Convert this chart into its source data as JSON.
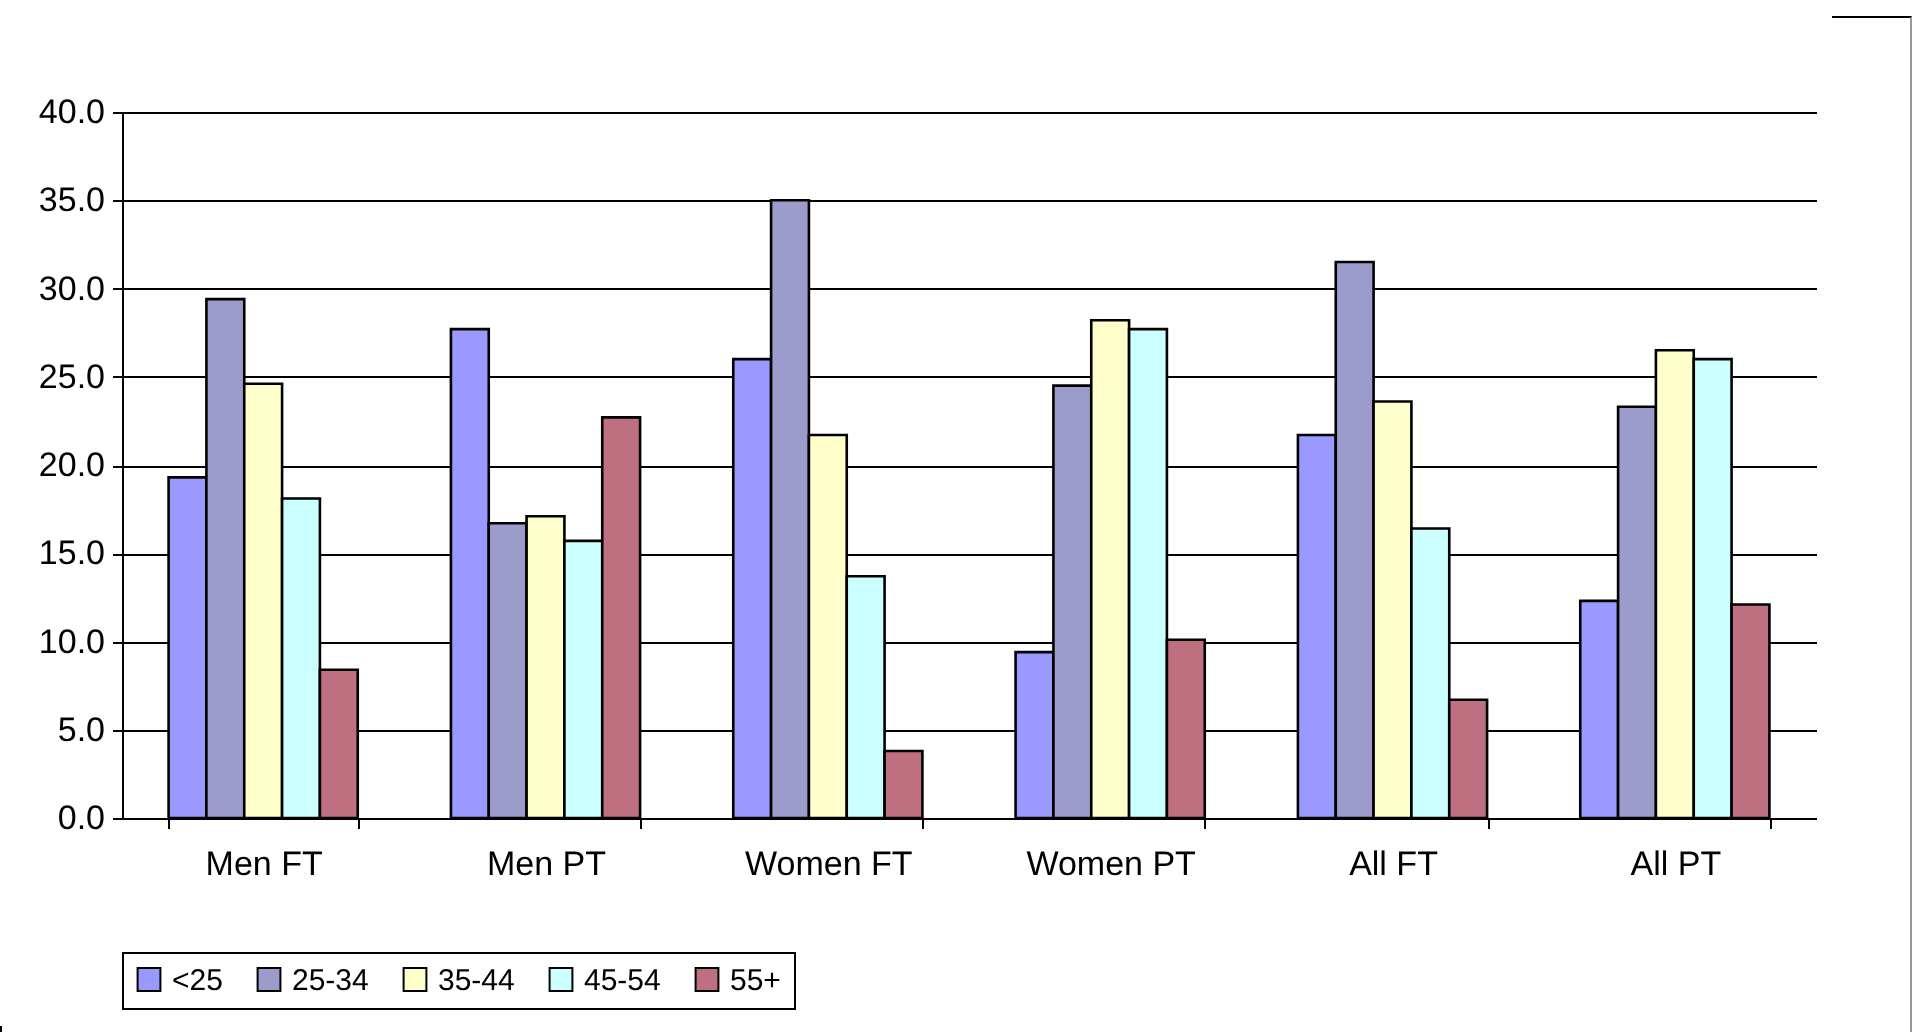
{
  "chart_data": {
    "type": "bar",
    "categories": [
      "Men FT",
      "Men PT",
      "Women FT",
      "Women PT",
      "All FT",
      "All PT"
    ],
    "series": [
      {
        "name": "<25",
        "color": "#9999ff",
        "values": [
          19.3,
          27.7,
          26.0,
          9.4,
          21.7,
          12.3
        ]
      },
      {
        "name": "25-34",
        "color": "#9c9ccc",
        "values": [
          29.4,
          16.7,
          35.0,
          24.5,
          31.5,
          23.3
        ]
      },
      {
        "name": "35-44",
        "color": "#ffffcc",
        "values": [
          24.6,
          17.1,
          21.7,
          28.2,
          23.6,
          26.5
        ]
      },
      {
        "name": "45-54",
        "color": "#ccffff",
        "values": [
          18.1,
          15.7,
          13.7,
          27.7,
          16.4,
          26.0
        ]
      },
      {
        "name": "55+",
        "color": "#be7080",
        "values": [
          8.4,
          22.7,
          3.8,
          10.1,
          6.7,
          12.1
        ]
      }
    ],
    "ylim": [
      0,
      40
    ],
    "yticks": [
      {
        "value": 0,
        "label": "0.0"
      },
      {
        "value": 5,
        "label": "5.0"
      },
      {
        "value": 10,
        "label": "10.0"
      },
      {
        "value": 15,
        "label": "15.0"
      },
      {
        "value": 20,
        "label": "20.0"
      },
      {
        "value": 25,
        "label": "25.0"
      },
      {
        "value": 30,
        "label": "30.0"
      },
      {
        "value": 35,
        "label": "35.0"
      },
      {
        "value": 40,
        "label": "40.0"
      }
    ],
    "grid": "y",
    "legend": "bottom"
  }
}
